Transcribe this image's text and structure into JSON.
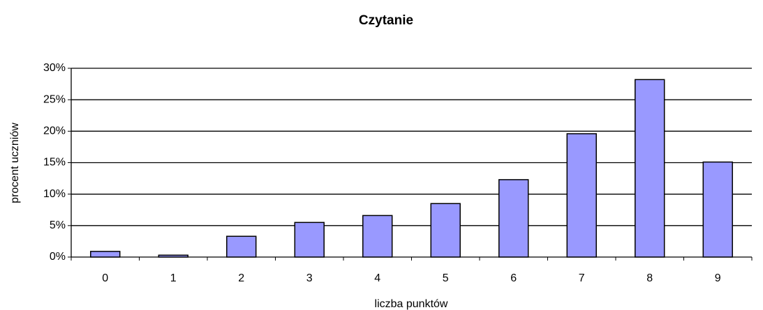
{
  "chart_data": {
    "type": "bar",
    "title": "Czytanie",
    "x_label": "liczba punktów",
    "y_label": "procent uczniów",
    "categories": [
      "0",
      "1",
      "2",
      "3",
      "4",
      "5",
      "6",
      "7",
      "8",
      "9"
    ],
    "values": [
      0.9,
      0.3,
      3.3,
      5.5,
      6.6,
      8.5,
      12.3,
      19.6,
      28.2,
      15.1
    ],
    "color": "#9999ff",
    "ylim": [
      0,
      30
    ],
    "yticks": [
      {
        "value": 0,
        "label": "0%"
      },
      {
        "value": 5,
        "label": "5%"
      },
      {
        "value": 10,
        "label": "10%"
      },
      {
        "value": 15,
        "label": "15%"
      },
      {
        "value": 20,
        "label": "20%"
      },
      {
        "value": 25,
        "label": "25%"
      },
      {
        "value": 30,
        "label": "30%"
      }
    ],
    "grid": true
  }
}
